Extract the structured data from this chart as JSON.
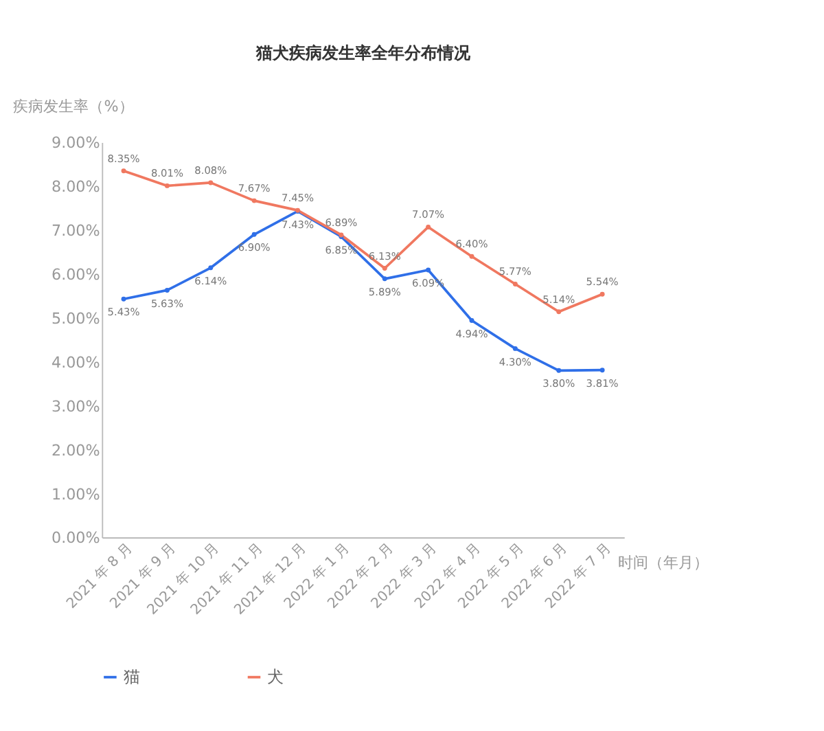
{
  "chart_data": {
    "type": "line",
    "title": "猫犬疾病发生率全年分布情况",
    "xlabel": "时间（年月）",
    "ylabel": "疾病发生率（%）",
    "categories": [
      "2021 年 8 月",
      "2021 年 9 月",
      "2021 年 10 月",
      "2021 年 11 月",
      "2021 年 12 月",
      "2022 年 1 月",
      "2022 年 2 月",
      "2022 年 3 月",
      "2022 年 4 月",
      "2022 年 5 月",
      "2022 年 6 月",
      "2022 年 7 月"
    ],
    "series": [
      {
        "name": "猫",
        "color": "#2f6fe8",
        "values": [
          5.43,
          5.63,
          6.14,
          6.9,
          7.43,
          6.85,
          5.89,
          6.09,
          4.94,
          4.3,
          3.8,
          3.81
        ],
        "value_labels": [
          "5.43%",
          "5.63%",
          "6.14%",
          "6.90%",
          "7.43%",
          "6.85%",
          "5.89%",
          "6.09%",
          "4.94%",
          "4.30%",
          "3.80%",
          "3.81%"
        ]
      },
      {
        "name": "犬",
        "color": "#f07860",
        "values": [
          8.35,
          8.01,
          8.08,
          7.67,
          7.45,
          6.89,
          6.13,
          7.07,
          6.4,
          5.77,
          5.14,
          5.54
        ],
        "value_labels": [
          "8.35%",
          "8.01%",
          "8.08%",
          "7.67%",
          "7.45%",
          "6.89%",
          "6.13%",
          "7.07%",
          "6.40%",
          "5.77%",
          "5.14%",
          "5.54%"
        ]
      }
    ],
    "ylim": [
      0,
      9
    ],
    "yticks": [
      {
        "value": 0,
        "label": "0.00%"
      },
      {
        "value": 1,
        "label": "1.00%"
      },
      {
        "value": 2,
        "label": "2.00%"
      },
      {
        "value": 3,
        "label": "3.00%"
      },
      {
        "value": 4,
        "label": "4.00%"
      },
      {
        "value": 5,
        "label": "5.00%"
      },
      {
        "value": 6,
        "label": "6.00%"
      },
      {
        "value": 7,
        "label": "7.00%"
      },
      {
        "value": 8,
        "label": "8.00%"
      },
      {
        "value": 9,
        "label": "9.00%"
      }
    ],
    "grid": false,
    "legend": "bottom",
    "marker": "circle",
    "line_style": "solid"
  }
}
